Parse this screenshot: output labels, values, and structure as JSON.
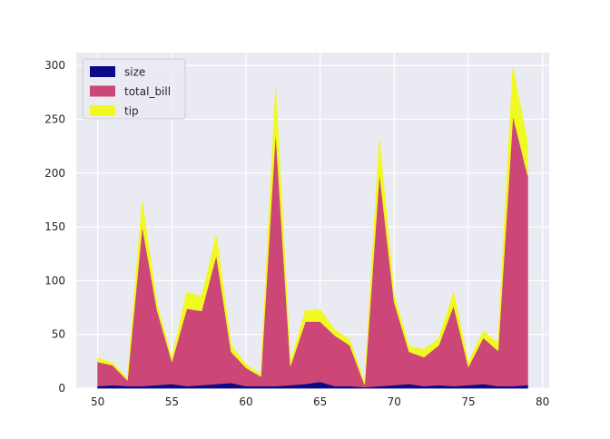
{
  "chart_data": {
    "type": "area",
    "stacked": true,
    "title": "",
    "xlabel": "",
    "ylabel": "",
    "xlim": [
      48.55,
      80.45
    ],
    "ylim": [
      0,
      312
    ],
    "xticks": [
      50,
      55,
      60,
      65,
      70,
      75,
      80
    ],
    "yticks": [
      0,
      50,
      100,
      150,
      200,
      250,
      300
    ],
    "grid": true,
    "legend_position": "top-left",
    "x": [
      50,
      51,
      52,
      53,
      54,
      55,
      56,
      57,
      58,
      59,
      60,
      61,
      62,
      63,
      64,
      65,
      66,
      67,
      68,
      69,
      70,
      71,
      72,
      73,
      74,
      75,
      76,
      77,
      78,
      79
    ],
    "series": [
      {
        "name": "size",
        "color": "#0d0887",
        "values": [
          2,
          3,
          2,
          2,
          3,
          4,
          2,
          3,
          4,
          5,
          2,
          2,
          2,
          3,
          4,
          6,
          2,
          2,
          1,
          2,
          3,
          4,
          2,
          3,
          2,
          3,
          4,
          2,
          2,
          3
        ]
      },
      {
        "name": "total_bill",
        "color": "#cc4778",
        "values": [
          22.5,
          18.5,
          5.5,
          149.5,
          70.0,
          21.0,
          72.0,
          69.0,
          120.0,
          29.0,
          17.0,
          9.0,
          238.0,
          18.0,
          58.0,
          56.0,
          47.0,
          38.0,
          2.5,
          199.0,
          77.0,
          30.0,
          27.0,
          37.0,
          75.0,
          17.0,
          43.0,
          33.0,
          252.0,
          195.0
        ]
      },
      {
        "name": "tip",
        "color": "#f0f921",
        "values": [
          3.5,
          2.0,
          1.5,
          22.0,
          5.0,
          3.0,
          15.0,
          13.0,
          18.0,
          6.0,
          3.0,
          2.0,
          39.0,
          3.0,
          10.0,
          11.0,
          5.0,
          5.0,
          1.5,
          30.0,
          6.0,
          5.0,
          7.0,
          6.0,
          12.0,
          4.0,
          6.0,
          7.0,
          44.0,
          30.0
        ]
      }
    ]
  }
}
